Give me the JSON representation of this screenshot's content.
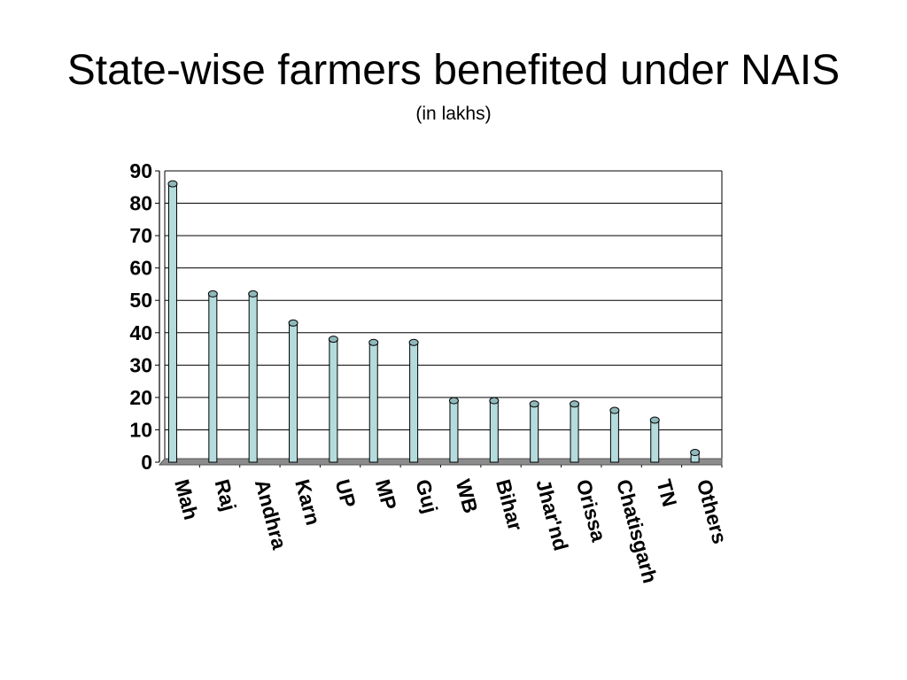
{
  "chart_data": {
    "type": "bar",
    "title": "State-wise farmers benefited under NAIS",
    "subtitle": "(in lakhs)",
    "categories": [
      "Mah",
      "Raj",
      "Andhra",
      "Karn",
      "UP",
      "MP",
      "Guj",
      "WB",
      "Bihar",
      "Jhar'nd",
      "Orissa",
      "Chatisgarh",
      "TN",
      "Others"
    ],
    "values": [
      86,
      52,
      52,
      43,
      38,
      37,
      37,
      19,
      19,
      18,
      18,
      16,
      13,
      3
    ],
    "ylim": [
      0,
      90
    ],
    "yticks": [
      0,
      10,
      20,
      30,
      40,
      50,
      60,
      70,
      80,
      90
    ],
    "grid": true,
    "colors": {
      "bar_fill": "#b4dcdc",
      "bar_top": "#8fb8ba",
      "bar_stroke": "#000000",
      "floor": "#8c8c8c",
      "gridline": "#000000"
    }
  }
}
